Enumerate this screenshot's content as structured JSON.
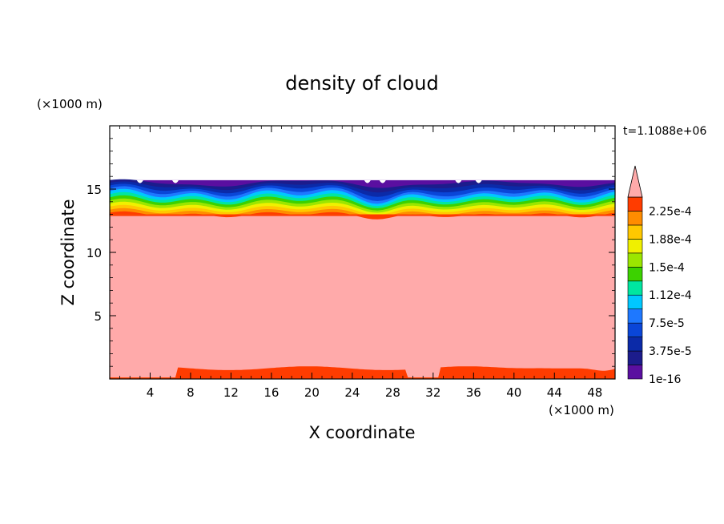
{
  "chart_data": {
    "type": "heatmap",
    "title": "density of cloud",
    "xlabel": "X coordinate",
    "ylabel": "Z coordinate",
    "x_unit": "(×1000 m)",
    "y_unit": "(×1000 m)",
    "time_label": "t=1.1088e+06",
    "xlim": [
      0,
      50
    ],
    "ylim": [
      0,
      20
    ],
    "x_ticks": [
      4,
      8,
      12,
      16,
      20,
      24,
      28,
      32,
      36,
      40,
      44,
      48
    ],
    "y_ticks": [
      5,
      10,
      15
    ],
    "colorbar": {
      "labels": [
        {
          "value": 0,
          "text": "1e-16"
        },
        {
          "value": 3.75e-05,
          "text": "3.75e-5"
        },
        {
          "value": 7.5e-05,
          "text": "7.5e-5"
        },
        {
          "value": 0.0001125,
          "text": "1.12e-4"
        },
        {
          "value": 0.00015,
          "text": "1.5e-4"
        },
        {
          "value": 0.0001875,
          "text": "1.88e-4"
        },
        {
          "value": 0.000225,
          "text": "2.25e-4"
        }
      ],
      "level_step": 1.875e-05,
      "levels": 13,
      "colors": [
        "#5a0fa0",
        "#1c1c8c",
        "#0b2aa8",
        "#0a46d8",
        "#1e78ff",
        "#00c8ff",
        "#00e6a0",
        "#3cd200",
        "#9be600",
        "#f0f000",
        "#ffc800",
        "#ff8c00",
        "#ff3c00"
      ],
      "over_color": "#ffaaaa"
    },
    "fields": {
      "cloud_band_bottom_km": 13,
      "cloud_band_top_km": 15.7,
      "cloud_interior_color": "#ffaaaa",
      "lower_layer_top_km": 1.0,
      "lower_layer_gap_x_km": [
        [
          0,
          6.5
        ],
        [
          29.5,
          32.5
        ]
      ]
    }
  }
}
